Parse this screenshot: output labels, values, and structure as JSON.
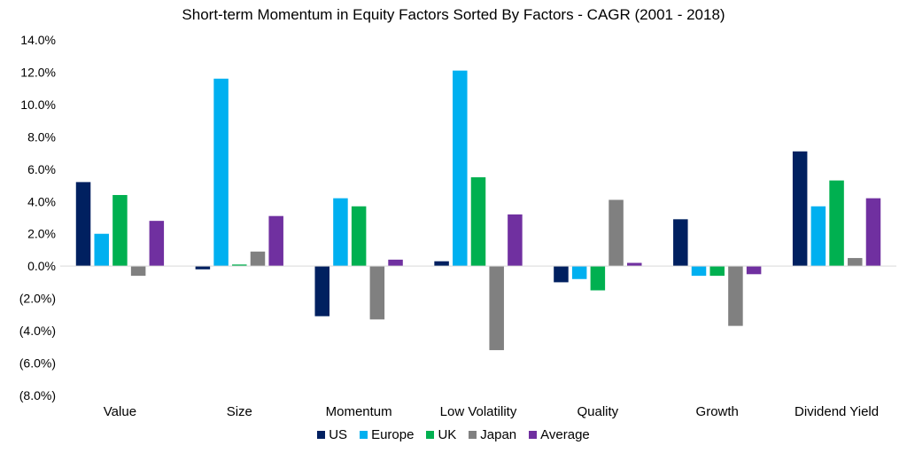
{
  "chart_data": {
    "type": "bar",
    "title": "Short-term Momentum in Equity Factors Sorted By Factors - CAGR (2001 - 2018)",
    "xlabel": "",
    "ylabel": "",
    "ylim": [
      -8,
      14
    ],
    "yticks": [
      14,
      12,
      10,
      8,
      6,
      4,
      2,
      0,
      -2,
      -4,
      -6,
      -8
    ],
    "ytick_labels": [
      "14.0%",
      "12.0%",
      "10.0%",
      "8.0%",
      "6.0%",
      "4.0%",
      "2.0%",
      "0.0%",
      "(2.0%)",
      "(4.0%)",
      "(6.0%)",
      "(8.0%)"
    ],
    "grid": false,
    "legend_position": "bottom",
    "categories": [
      "Value",
      "Size",
      "Momentum",
      "Low Volatility",
      "Quality",
      "Growth",
      "Dividend Yield"
    ],
    "series": [
      {
        "name": "US",
        "color": "#002060",
        "values": [
          5.2,
          -0.2,
          -3.1,
          0.3,
          -1.0,
          2.9,
          7.1
        ]
      },
      {
        "name": "Europe",
        "color": "#00B0F0",
        "values": [
          2.0,
          11.6,
          4.2,
          12.1,
          -0.8,
          -0.6,
          3.7
        ]
      },
      {
        "name": "UK",
        "color": "#00B050",
        "values": [
          4.4,
          0.1,
          3.7,
          5.5,
          -1.5,
          -0.6,
          5.3
        ]
      },
      {
        "name": "Japan",
        "color": "#808080",
        "values": [
          -0.6,
          0.9,
          -3.3,
          -5.2,
          4.1,
          -3.7,
          0.5
        ]
      },
      {
        "name": "Average",
        "color": "#7030A0",
        "values": [
          2.8,
          3.1,
          0.4,
          3.2,
          0.2,
          -0.5,
          4.2
        ]
      }
    ]
  }
}
